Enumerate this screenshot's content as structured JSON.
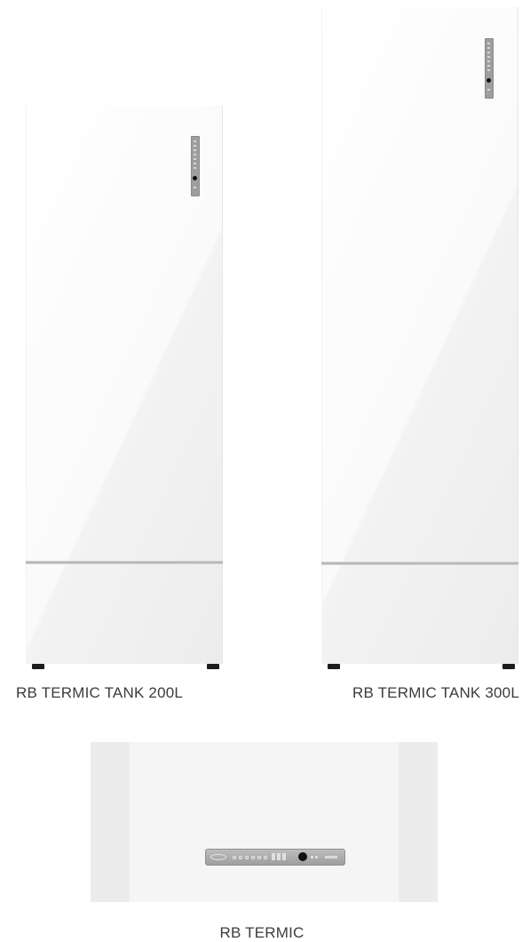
{
  "products": [
    {
      "name": "RB TERMIC TANK 200L"
    },
    {
      "name": "RB TERMIC TANK 300L"
    },
    {
      "name": "RB TERMIC"
    }
  ],
  "colors": {
    "label_text": "#3c3c3c",
    "tank_body": "#f7f7f7",
    "panel": "#9e9e9e",
    "foot": "#1c1c1c",
    "knob": "#111111"
  },
  "icons": {
    "control_panel": "control-panel-icon",
    "knob": "dial-knob-icon",
    "brand_logo": "brand-logo-icon"
  }
}
